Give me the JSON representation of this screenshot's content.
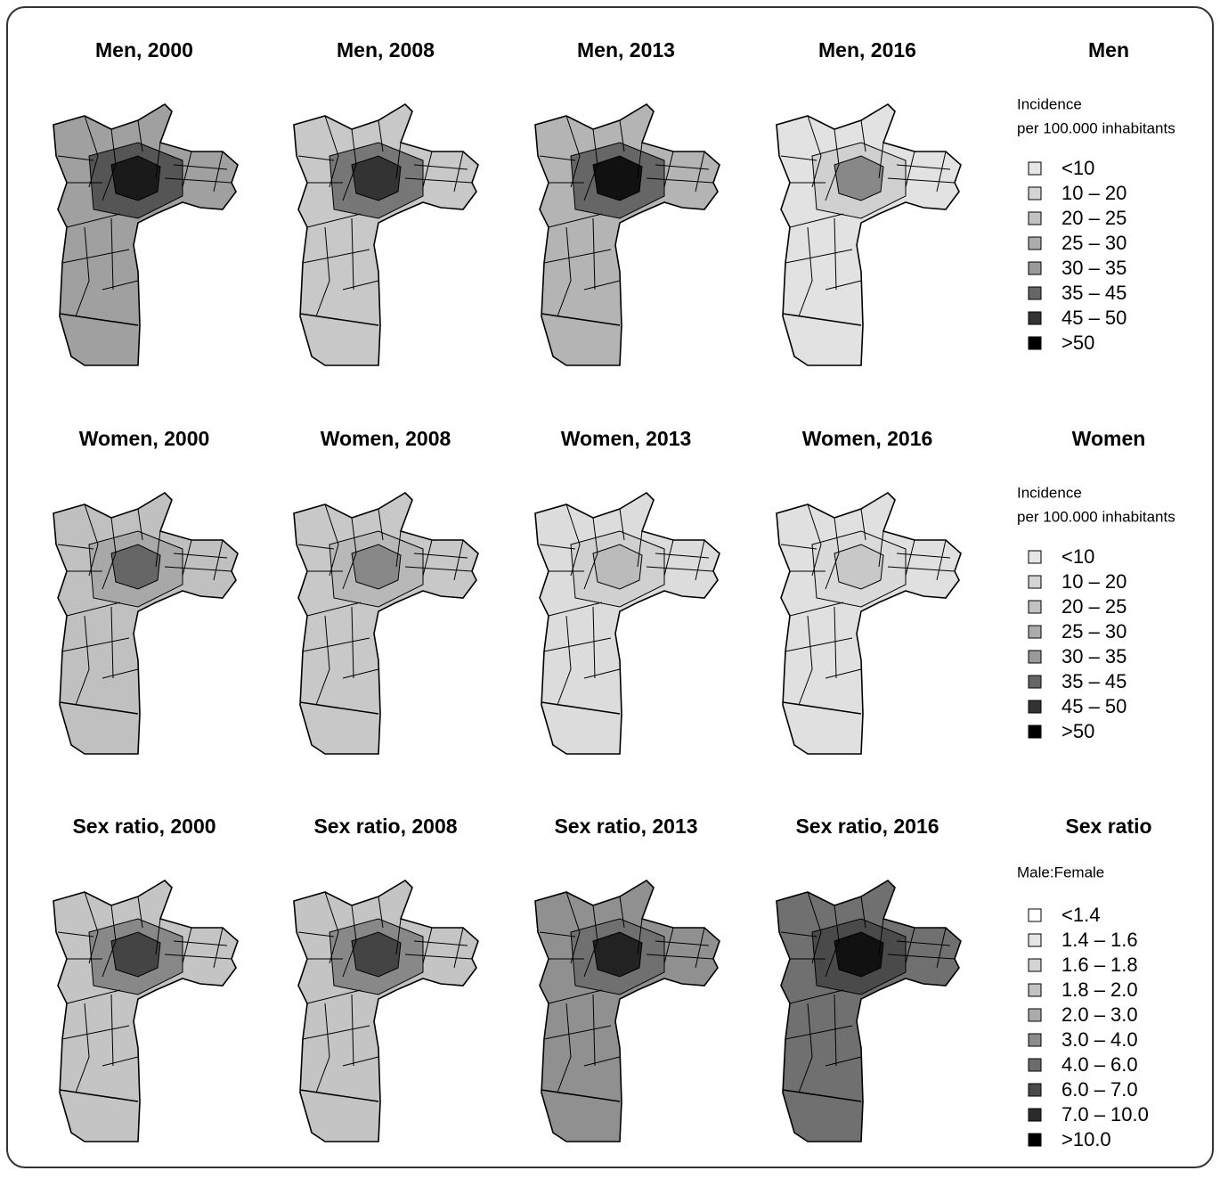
{
  "rows": [
    {
      "panels": [
        "Men,  2000",
        "Men,  2008",
        "Men,  2013",
        "Men,  2016"
      ],
      "legend": {
        "title": "Men",
        "subtitle": [
          "Incidence",
          "per 100.000 inhabitants"
        ],
        "items": [
          {
            "label": "<10",
            "color": "#e6e6e6"
          },
          {
            "label": "10 – 20",
            "color": "#d4d4d4"
          },
          {
            "label": "20 – 25",
            "color": "#c2c2c2"
          },
          {
            "label": "25 – 30",
            "color": "#ababab"
          },
          {
            "label": "30 – 35",
            "color": "#999999"
          },
          {
            "label": "35 – 45",
            "color": "#666666"
          },
          {
            "label": "45 – 50",
            "color": "#333333"
          },
          {
            "label": ">50",
            "color": "#000000"
          }
        ]
      }
    },
    {
      "panels": [
        "Women,  2000",
        "Women,  2008",
        "Women,  2013",
        "Women,  2016"
      ],
      "legend": {
        "title": "Women",
        "subtitle": [
          "Incidence",
          "per 100.000 inhabitants"
        ],
        "items": [
          {
            "label": "<10",
            "color": "#e6e6e6"
          },
          {
            "label": "10 – 20",
            "color": "#d4d4d4"
          },
          {
            "label": "20 – 25",
            "color": "#c2c2c2"
          },
          {
            "label": "25 – 30",
            "color": "#ababab"
          },
          {
            "label": "30 – 35",
            "color": "#999999"
          },
          {
            "label": "35 – 45",
            "color": "#666666"
          },
          {
            "label": "45 – 50",
            "color": "#333333"
          },
          {
            "label": ">50",
            "color": "#000000"
          }
        ]
      }
    },
    {
      "panels": [
        "Sex ratio,  2000",
        "Sex ratio,  2008",
        "Sex ratio,  2013",
        "Sex ratio,  2016"
      ],
      "legend": {
        "title": "Sex ratio",
        "subtitle": [
          "Male:Female"
        ],
        "items": [
          {
            "label": "<1.4",
            "color": "#ffffff"
          },
          {
            "label": "1.4 – 1.6",
            "color": "#e6e6e6"
          },
          {
            "label": "1.6 – 1.8",
            "color": "#d4d4d4"
          },
          {
            "label": "1.8 – 2.0",
            "color": "#c2c2c2"
          },
          {
            "label": "2.0 – 3.0",
            "color": "#ababab"
          },
          {
            "label": "3.0 – 4.0",
            "color": "#8c8c8c"
          },
          {
            "label": "4.0 – 6.0",
            "color": "#6b6b6b"
          },
          {
            "label": "6.0 – 7.0",
            "color": "#4a4a4a"
          },
          {
            "label": "7.0 – 10.0",
            "color": "#2b2b2b"
          },
          {
            "label": ">10.0",
            "color": "#000000"
          }
        ]
      }
    }
  ]
}
